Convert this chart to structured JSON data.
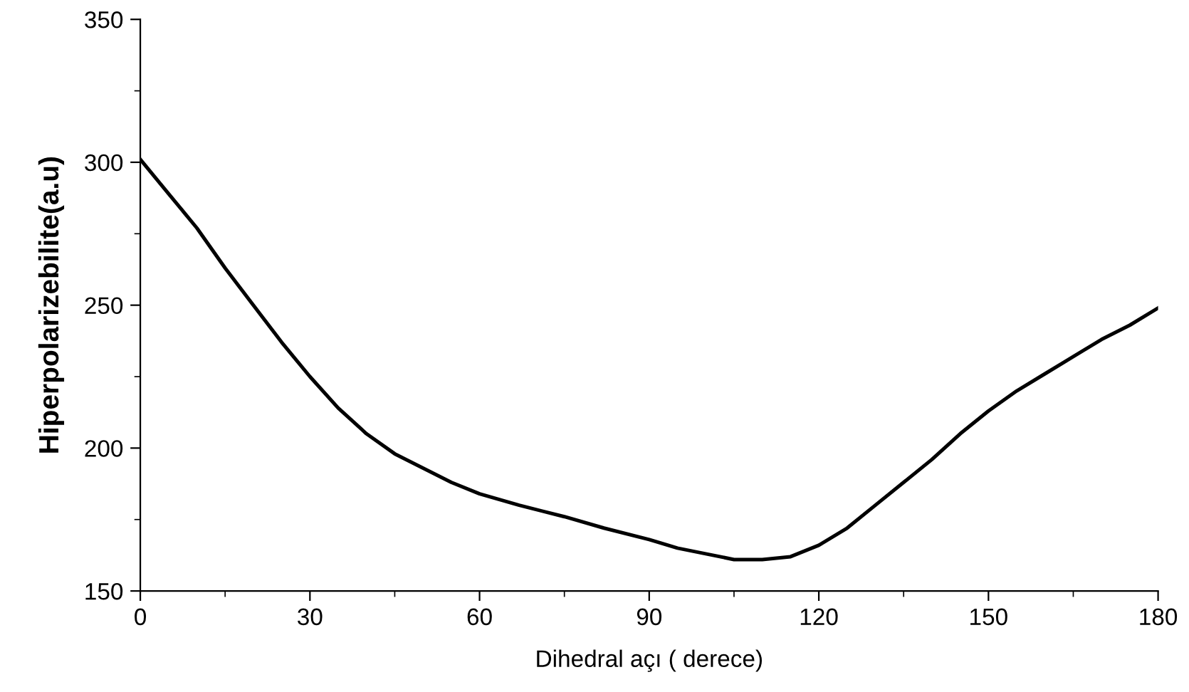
{
  "chart_data": {
    "type": "line",
    "xlabel": "Dihedral açı ( derece)",
    "ylabel": "Hiperpolarizebilite(a.u)",
    "x": [
      0,
      5,
      10,
      15,
      20,
      25,
      30,
      35,
      40,
      45,
      50,
      55,
      60,
      67,
      75,
      82,
      90,
      95,
      100,
      105,
      110,
      115,
      120,
      125,
      130,
      135,
      140,
      145,
      150,
      155,
      160,
      165,
      170,
      175,
      180
    ],
    "values": [
      301,
      289,
      277,
      263,
      250,
      237,
      225,
      214,
      205,
      198,
      193,
      188,
      184,
      180,
      176,
      172,
      168,
      165,
      163,
      161,
      161,
      162,
      166,
      172,
      180,
      188,
      196,
      205,
      213,
      220,
      226,
      232,
      238,
      243,
      249
    ],
    "color": "#000000",
    "xlim": [
      0,
      180
    ],
    "xticks": [
      0,
      30,
      60,
      90,
      120,
      150,
      180
    ],
    "ylim": [
      150,
      350
    ],
    "yticks": [
      150,
      200,
      250,
      300,
      350
    ],
    "grid": false,
    "legend": false,
    "marker": "none",
    "line_style": "solid"
  }
}
